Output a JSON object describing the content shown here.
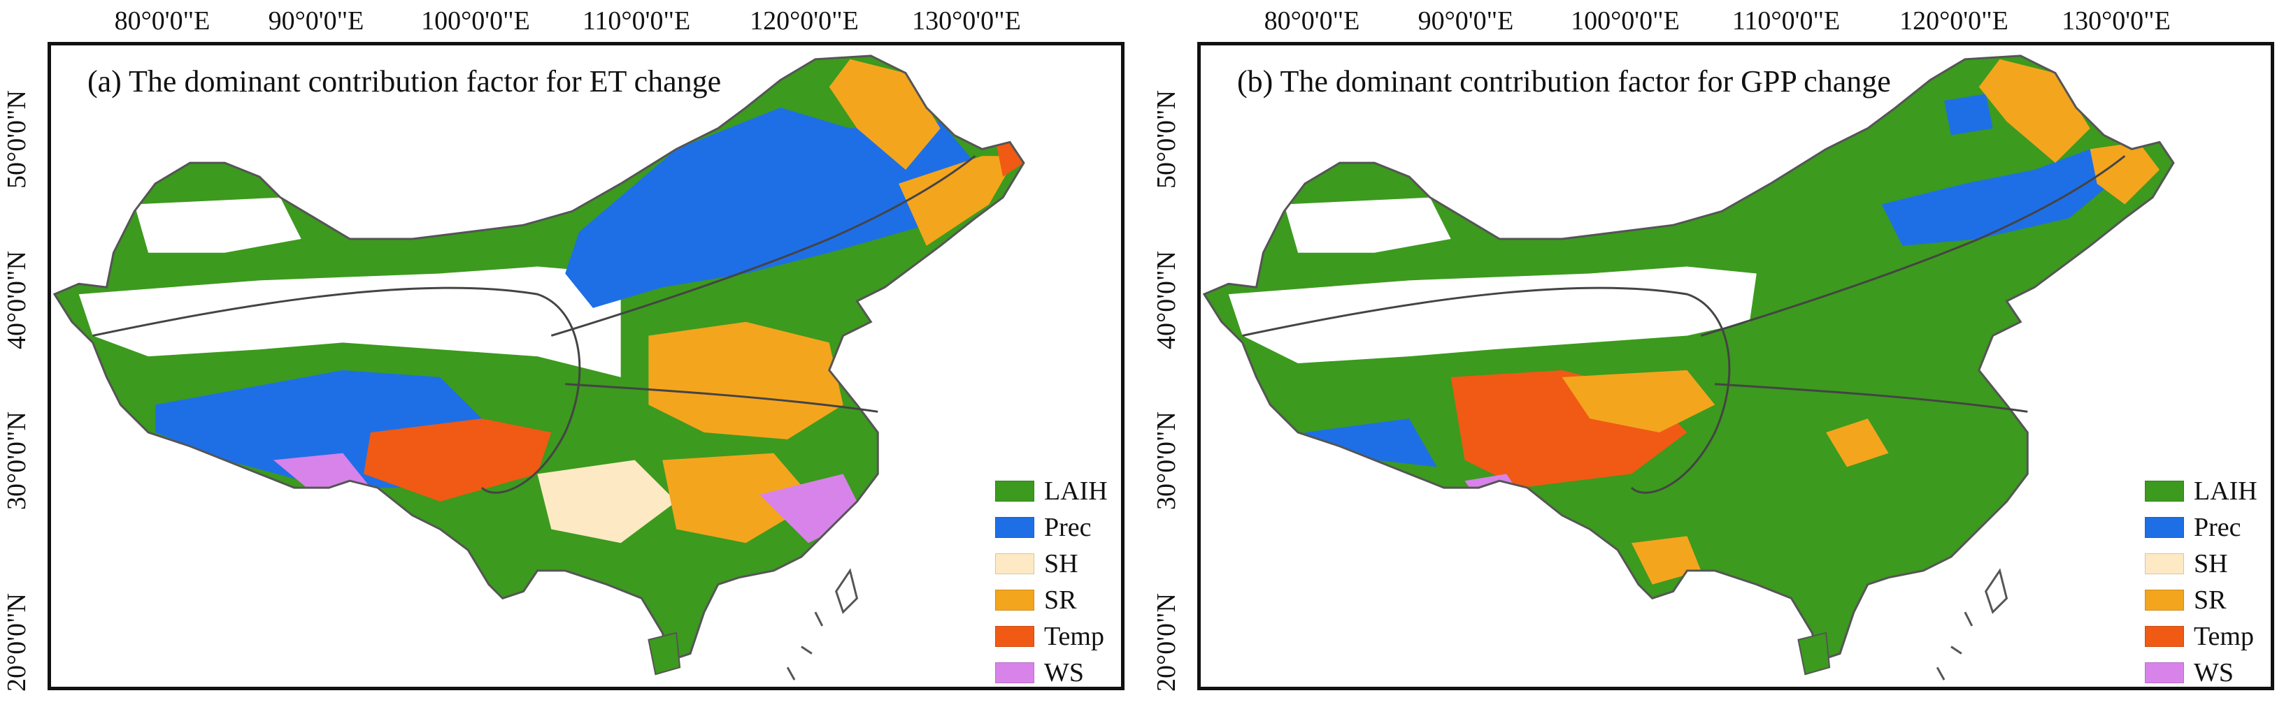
{
  "panels": [
    {
      "id": "a",
      "title": "(a) The dominant contribution factor for ET change",
      "dominant_factor": "LAIH"
    },
    {
      "id": "b",
      "title": "(b) The dominant contribution factor for GPP change",
      "dominant_factor": "LAIH"
    }
  ],
  "lon_ticks": [
    "80°0'0\"E",
    "90°0'0\"E",
    "100°0'0\"E",
    "110°0'0\"E",
    "120°0'0\"E",
    "130°0'0\"E"
  ],
  "lat_ticks": [
    "50°0'0\"N",
    "40°0'0\"N",
    "30°0'0\"N",
    "20°0'0\"N"
  ],
  "legend": [
    {
      "label": "LAIH",
      "color": "#3c9a1e"
    },
    {
      "label": "Prec",
      "color": "#1e6fe6"
    },
    {
      "label": "SH",
      "color": "#fde9c4"
    },
    {
      "label": "SR",
      "color": "#f4a51e"
    },
    {
      "label": "Temp",
      "color": "#f05a14"
    },
    {
      "label": "WS",
      "color": "#d783ea"
    }
  ],
  "colors": {
    "frame": "#111111",
    "boundary": "#555555",
    "no_data": "#ffffff"
  }
}
